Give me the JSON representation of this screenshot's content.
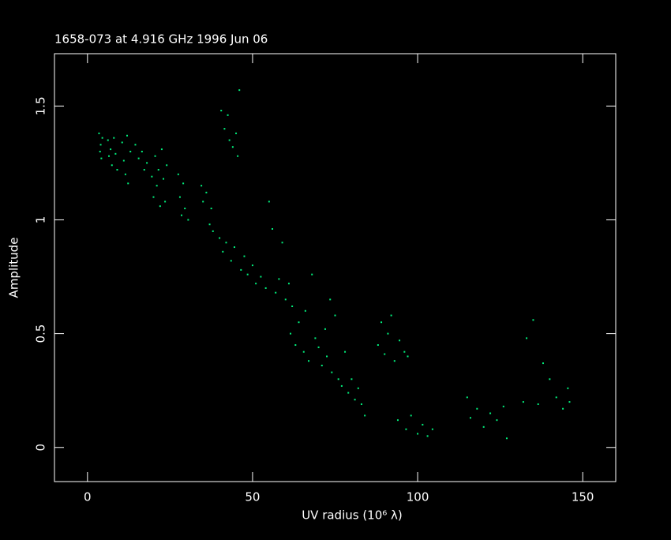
{
  "chart_data": {
    "type": "scatter",
    "title": "1658-073 at 4.916 GHz 1996 Jun 06",
    "xlabel": "UV radius  (10⁶ λ)",
    "ylabel": "Amplitude",
    "xlim": [
      -10,
      160
    ],
    "ylim": [
      -0.15,
      1.73
    ],
    "xticks": [
      0,
      50,
      100,
      150
    ],
    "yticks": [
      0,
      0.5,
      1,
      1.5
    ],
    "color": "#00f07c",
    "series": [
      {
        "x": [
          3.5,
          3.8,
          4.0,
          4.2,
          4.5,
          6.2,
          6.5,
          7.0,
          7.4,
          8.0,
          8.5,
          9.0,
          10.5,
          11.0,
          11.5,
          12.0,
          12.3,
          13.0,
          14.5,
          15.5,
          16.5,
          17.2,
          18.0,
          19.5,
          20.0,
          20.5,
          21.0,
          21.5,
          22.0,
          22.5,
          23.0,
          23.5,
          24.0,
          27.5,
          28.0,
          28.5,
          29.0,
          29.5,
          30.5,
          34.5,
          35.0,
          36.0,
          37.0,
          37.5,
          38.0,
          40.5,
          41.5,
          42.5,
          43.0,
          44.0,
          45.0,
          45.5,
          46.0,
          40.0,
          41.0,
          42.0,
          43.5,
          44.5,
          46.5,
          47.5,
          48.5,
          50.0,
          51.0,
          52.5,
          54.0,
          55.0,
          56.0,
          57.0,
          58.0,
          59.0,
          60.0,
          61.0,
          62.0,
          61.5,
          63.0,
          64.0,
          65.5,
          66.0,
          67.0,
          68.0,
          69.0,
          70.0,
          71.0,
          72.0,
          72.5,
          73.5,
          74.0,
          75.0,
          76.0,
          77.0,
          78.0,
          79.0,
          80.0,
          81.0,
          82.0,
          83.0,
          84.0,
          88.0,
          89.0,
          90.0,
          91.0,
          92.0,
          93.0,
          94.5,
          96.0,
          97.0,
          94.0,
          96.5,
          98.0,
          100.0,
          101.5,
          103.0,
          104.5,
          115.0,
          116.0,
          118.0,
          120.0,
          122.0,
          124.0,
          126.0,
          127.0,
          132.0,
          133.0,
          135.0,
          136.5,
          138.0,
          140.0,
          142.0,
          144.0,
          145.5,
          146.0
        ],
        "values": [
          1.38,
          1.3,
          1.33,
          1.27,
          1.36,
          1.35,
          1.28,
          1.31,
          1.24,
          1.36,
          1.29,
          1.22,
          1.34,
          1.26,
          1.2,
          1.37,
          1.16,
          1.3,
          1.33,
          1.27,
          1.3,
          1.22,
          1.25,
          1.19,
          1.1,
          1.28,
          1.15,
          1.22,
          1.06,
          1.31,
          1.18,
          1.08,
          1.24,
          1.2,
          1.1,
          1.02,
          1.16,
          1.05,
          1.0,
          1.15,
          1.08,
          1.12,
          0.98,
          1.05,
          0.95,
          1.48,
          1.4,
          1.46,
          1.35,
          1.32,
          1.38,
          1.28,
          1.57,
          0.92,
          0.86,
          0.9,
          0.82,
          0.88,
          0.78,
          0.84,
          0.76,
          0.8,
          0.72,
          0.75,
          0.7,
          1.08,
          0.96,
          0.68,
          0.74,
          0.9,
          0.65,
          0.72,
          0.62,
          0.5,
          0.45,
          0.55,
          0.42,
          0.6,
          0.38,
          0.76,
          0.48,
          0.44,
          0.36,
          0.52,
          0.4,
          0.65,
          0.33,
          0.58,
          0.3,
          0.27,
          0.42,
          0.24,
          0.3,
          0.21,
          0.26,
          0.19,
          0.14,
          0.45,
          0.55,
          0.41,
          0.5,
          0.58,
          0.38,
          0.47,
          0.42,
          0.4,
          0.12,
          0.08,
          0.14,
          0.06,
          0.1,
          0.05,
          0.08,
          0.22,
          0.13,
          0.17,
          0.09,
          0.15,
          0.12,
          0.18,
          0.04,
          0.2,
          0.48,
          0.56,
          0.19,
          0.37,
          0.3,
          0.22,
          0.17,
          0.26,
          0.2
        ]
      }
    ]
  }
}
